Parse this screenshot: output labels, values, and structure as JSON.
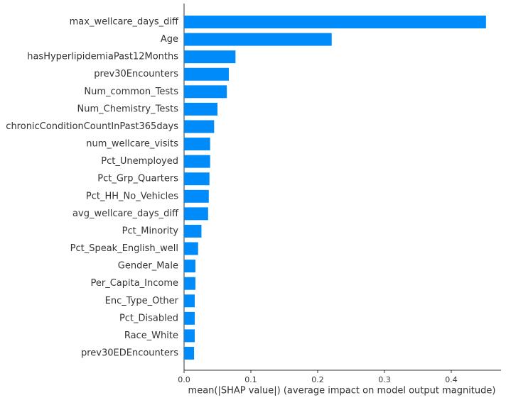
{
  "chart_data": {
    "type": "bar",
    "orientation": "horizontal",
    "x_label": "mean(|SHAP value|) (average impact on model output magnitude)",
    "categories": [
      "max_wellcare_days_diff",
      "Age",
      "hasHyperlipidemiaPast12Months",
      "prev30Encounters",
      "Num_common_Tests",
      "Num_Chemistry_Tests",
      "chronicConditionCountInPast365days",
      "num_wellcare_visits",
      "Pct_Unemployed",
      "Pct_Grp_Quarters",
      "Pct_HH_No_Vehicles",
      "avg_wellcare_days_diff",
      "Pct_Minority",
      "Pct_Speak_English_well",
      "Gender_Male",
      "Per_Capita_Income",
      "Enc_Type_Other",
      "Pct_Disabled",
      "Race_White",
      "prev30EDEncounters"
    ],
    "values": [
      0.452,
      0.221,
      0.077,
      0.067,
      0.064,
      0.05,
      0.045,
      0.039,
      0.039,
      0.038,
      0.037,
      0.036,
      0.026,
      0.021,
      0.017,
      0.017,
      0.016,
      0.016,
      0.016,
      0.015
    ],
    "color": "#008bfb",
    "xlim": [
      0,
      0.4745
    ],
    "xticks": [
      {
        "value": 0,
        "label": "0.0"
      },
      0.1,
      0.2,
      0.3,
      0.4
    ]
  }
}
